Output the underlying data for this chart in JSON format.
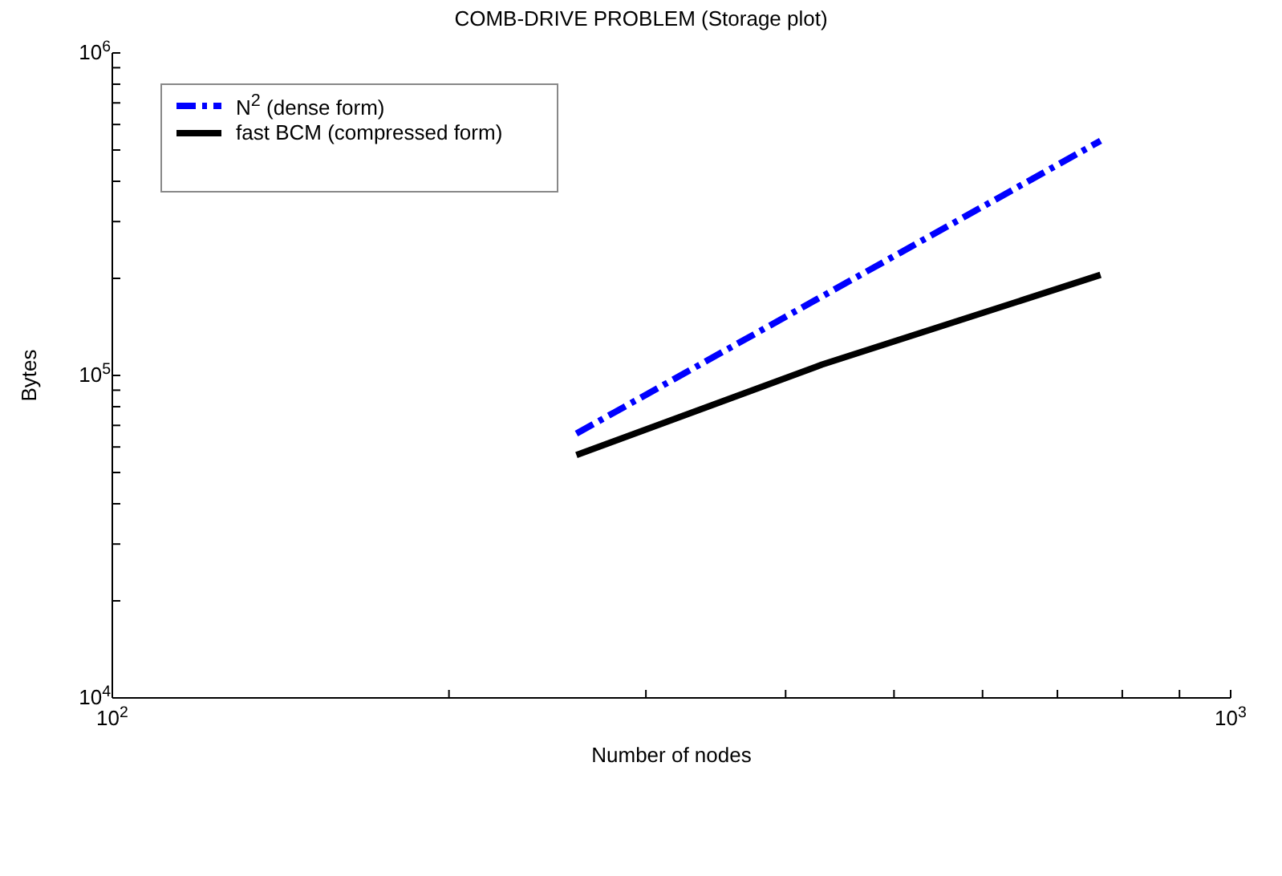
{
  "chart_data": {
    "type": "line",
    "title": "COMB-DRIVE PROBLEM (Storage plot)",
    "xlabel": "Number of nodes",
    "ylabel": "Bytes",
    "log": "xy",
    "legend": "top left",
    "marker": "none",
    "xlim": [
      100,
      1000
    ],
    "ylim": [
      10000,
      1000000
    ],
    "xticks": [
      {
        "value": 100,
        "label": "10$^{2}$"
      },
      {
        "value": 200,
        "label": null
      },
      {
        "value": 300,
        "label": null
      },
      {
        "value": 400,
        "label": null
      },
      {
        "value": 500,
        "label": null
      },
      {
        "value": 600,
        "label": null
      },
      {
        "value": 700,
        "label": null
      },
      {
        "value": 800,
        "label": null
      },
      {
        "value": 900,
        "label": null
      },
      {
        "value": 1000,
        "label": "10$^{3}$"
      }
    ],
    "yticks": [
      {
        "value": 10000,
        "label": "10$^{4}$"
      },
      {
        "value": 20000,
        "label": null
      },
      {
        "value": 30000,
        "label": null
      },
      {
        "value": 40000,
        "label": null
      },
      {
        "value": 50000,
        "label": null
      },
      {
        "value": 60000,
        "label": null
      },
      {
        "value": 70000,
        "label": null
      },
      {
        "value": 80000,
        "label": null
      },
      {
        "value": 90000,
        "label": null
      },
      {
        "value": 100000,
        "label": "10$^{5}$"
      },
      {
        "value": 200000,
        "label": null
      },
      {
        "value": 300000,
        "label": null
      },
      {
        "value": 400000,
        "label": null
      },
      {
        "value": 500000,
        "label": null
      },
      {
        "value": 600000,
        "label": null
      },
      {
        "value": 700000,
        "label": null
      },
      {
        "value": 800000,
        "label": null
      },
      {
        "value": 900000,
        "label": null
      },
      {
        "value": 1000000,
        "label": "10$^{6}$"
      }
    ],
    "series": [
      {
        "name": "N$^{2}$ (dense form)",
        "color": "#0000ff",
        "line_style": "dashed",
        "x": [
          260,
          765
        ],
        "values": [
          66000,
          534000
        ]
      },
      {
        "name": "fast BCM (compressed form)",
        "color": "#000000",
        "line_style": "solid",
        "x": [
          260,
          431,
          765
        ],
        "values": [
          56600,
          108000,
          205000
        ]
      }
    ]
  }
}
